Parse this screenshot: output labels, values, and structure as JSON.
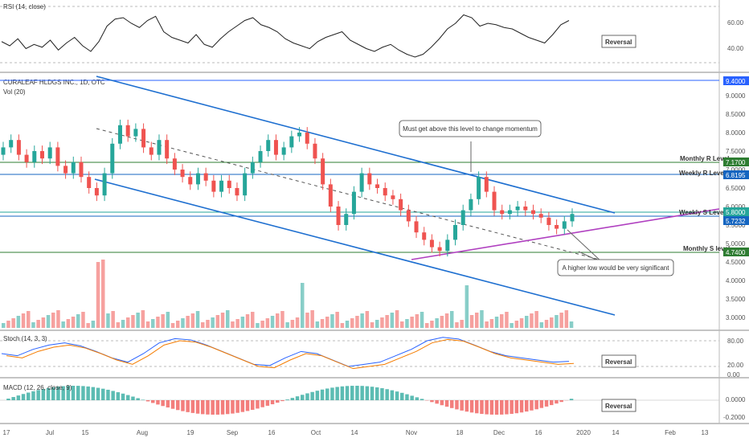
{
  "symbol_title": "CURALEAF HLDGS INC., 1D, OTC",
  "volume_label": "Vol (20)",
  "rsi": {
    "label": "RSI (14, close)",
    "ticks": [
      "60.00",
      "40.00"
    ],
    "reversal": "Reversal"
  },
  "stoch": {
    "label": "Stoch (14, 3, 3)",
    "ticks": [
      "80.00",
      "20.00",
      "0.00"
    ],
    "reversal": "Reversal"
  },
  "macd": {
    "label": "MACD (12, 26, close, 9)",
    "ticks": [
      "0.0000",
      "-0.2000"
    ],
    "reversal": "Reversal"
  },
  "price_ticks": [
    "9.0000",
    "8.5000",
    "8.0000",
    "7.5000",
    "7.0000",
    "6.5000",
    "6.0000",
    "5.5000",
    "5.0000",
    "4.5000",
    "4.0000",
    "3.5000",
    "3.0000"
  ],
  "badges": [
    {
      "text": "9.4000",
      "color": "#2962ff"
    },
    {
      "text": "7.1700",
      "color": "#2e7d32"
    },
    {
      "text": "6.8195",
      "color": "#1565c0"
    },
    {
      "text": "5.8000",
      "color": "#26a69a"
    },
    {
      "text": "5.7232",
      "color": "#1565c0"
    },
    {
      "text": "4.7400",
      "color": "#2e7d32"
    }
  ],
  "levels": {
    "monthly_r": "Monthly R Level",
    "weekly_r": "Weekly R Level",
    "weekly_s": "Weekly S Level",
    "monthly_s": "Monthly S level"
  },
  "annotations": {
    "top": "Must get above this level to change momentum",
    "bottom": "A higher low would be very significant"
  },
  "x_labels": [
    "17",
    "Jul",
    "15",
    "Aug",
    "19",
    "Sep",
    "16",
    "Oct",
    "14",
    "Nov",
    "18",
    "Dec",
    "16",
    "2020",
    "14",
    "Feb",
    "13"
  ],
  "colors": {
    "up": "#26a69a",
    "down": "#ef5350",
    "channel": "#1e6fd0",
    "trend": "#b040c0",
    "ma": "#555555",
    "green_level": "#2e7d32"
  },
  "chart_data": {
    "type": "candlestick",
    "series": [
      {
        "name": "Price",
        "values": [
          7.6,
          7.8,
          7.4,
          7.2,
          7.5,
          7.3,
          7.6,
          7.1,
          6.9,
          7.2,
          6.8,
          6.5,
          6.3,
          6.9,
          7.7,
          8.2,
          7.9,
          8.1,
          7.6,
          7.4,
          7.8,
          7.3,
          7.0,
          6.8,
          6.6,
          6.9,
          6.7,
          6.4,
          6.7,
          6.5,
          6.3,
          6.9,
          7.2,
          7.5,
          7.8,
          7.4,
          7.6,
          7.9,
          8.0,
          7.7,
          7.3,
          6.6,
          6.0,
          5.5,
          5.8,
          6.4,
          6.9,
          6.6,
          6.5,
          6.3,
          6.2,
          5.9,
          5.6,
          5.3,
          5.1,
          4.9,
          4.8,
          5.1,
          5.5,
          5.9,
          6.2,
          6.8,
          6.4,
          5.9,
          5.8,
          5.9,
          6.0,
          5.9,
          5.8,
          5.7,
          5.5,
          5.4,
          5.6,
          5.8
        ]
      },
      {
        "name": "RSI",
        "values": [
          45,
          42,
          47,
          40,
          43,
          41,
          46,
          39,
          44,
          48,
          42,
          38,
          45,
          56,
          61,
          62,
          58,
          55,
          60,
          63,
          52,
          48,
          46,
          44,
          50,
          43,
          41,
          47,
          52,
          56,
          60,
          62,
          57,
          55,
          52,
          47,
          44,
          42,
          40,
          45,
          48,
          50,
          52,
          46,
          43,
          40,
          38,
          41,
          43,
          39,
          36,
          34,
          36,
          41,
          47,
          54,
          58,
          64,
          62,
          56,
          58,
          57,
          55,
          54,
          51,
          48,
          46,
          44,
          50,
          57,
          60
        ]
      },
      {
        "name": "Stoch",
        "values": [
          50,
          45,
          60,
          70,
          75,
          68,
          55,
          40,
          30,
          50,
          75,
          85,
          82,
          70,
          55,
          40,
          25,
          22,
          40,
          55,
          50,
          35,
          20,
          25,
          30,
          45,
          60,
          80,
          88,
          84,
          70,
          55,
          45,
          40,
          35,
          30,
          32
        ]
      }
    ],
    "ylim": [
      3.0,
      9.4
    ]
  }
}
